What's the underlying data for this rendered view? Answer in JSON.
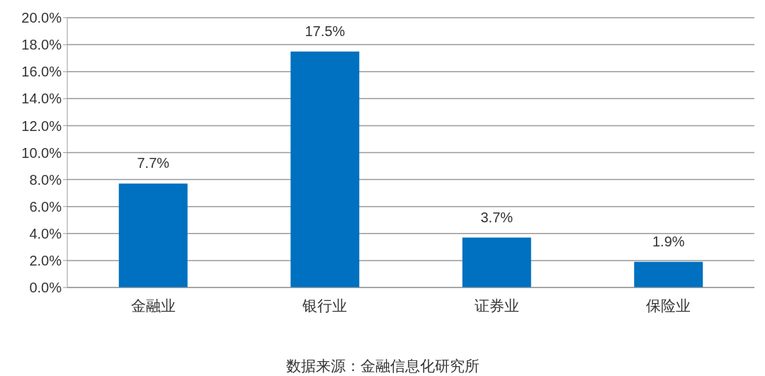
{
  "chart_data": {
    "type": "bar",
    "categories": [
      "金融业",
      "银行业",
      "证券业",
      "保险业"
    ],
    "values": [
      7.7,
      17.5,
      3.7,
      1.9
    ],
    "value_labels": [
      "7.7%",
      "17.5%",
      "3.7%",
      "1.9%"
    ],
    "color": "#0070c0",
    "ylim": [
      0,
      20
    ],
    "yticks": [
      {
        "value": 0,
        "label": "0.0%"
      },
      {
        "value": 2,
        "label": "2.0%"
      },
      {
        "value": 4,
        "label": "4.0%"
      },
      {
        "value": 6,
        "label": "6.0%"
      },
      {
        "value": 8,
        "label": "8.0%"
      },
      {
        "value": 10,
        "label": "10.0%"
      },
      {
        "value": 12,
        "label": "12.0%"
      },
      {
        "value": 14,
        "label": "14.0%"
      },
      {
        "value": 16,
        "label": "16.0%"
      },
      {
        "value": 18,
        "label": "18.0%"
      },
      {
        "value": 20,
        "label": "20.0%"
      }
    ],
    "grid": "y",
    "legend": false,
    "annotations": [
      "数据来源：金融信息化研究所"
    ]
  }
}
